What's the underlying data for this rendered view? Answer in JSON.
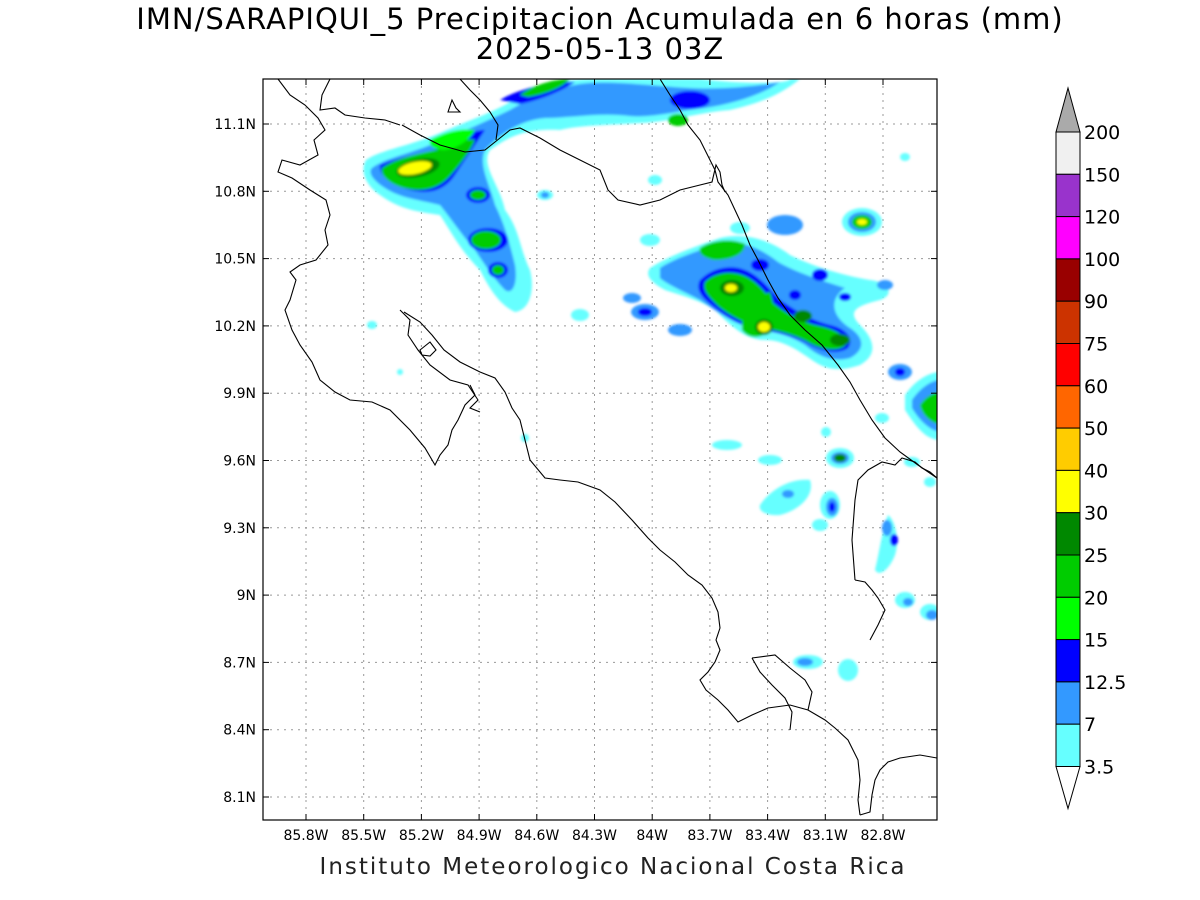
{
  "title_line1": "IMN/SARAPIQUI_5 Precipitacion Acumulada en 6 horas (mm)",
  "title_line2": "2025-05-13 03Z",
  "footer": "Instituto Meteorologico Nacional Costa Rica",
  "lat_ticks": [
    "11.1N",
    "10.8N",
    "10.5N",
    "10.2N",
    "9.9N",
    "9.6N",
    "9.3N",
    "9N",
    "8.7N",
    "8.4N",
    "8.1N"
  ],
  "lon_ticks": [
    "85.8W",
    "85.5W",
    "85.2W",
    "84.9W",
    "84.6W",
    "84.3W",
    "84W",
    "83.7W",
    "83.4W",
    "83.1W",
    "82.8W"
  ],
  "colorbar": {
    "labels": [
      "200",
      "150",
      "120",
      "100",
      "90",
      "75",
      "60",
      "50",
      "40",
      "30",
      "25",
      "20",
      "15",
      "12.5",
      "7",
      "3.5"
    ],
    "colors": {
      "c3_5": "#66ffff",
      "c7": "#3399ff",
      "c12_5": "#0000ff",
      "c15": "#00ff00",
      "c20": "#00cc00",
      "c25": "#008800",
      "c30": "#ffff00",
      "c40": "#ffcc00",
      "c50": "#ff6600",
      "c60": "#ff0000",
      "c75": "#cc3300",
      "c90": "#990000",
      "c100": "#ff00ff",
      "c120": "#9933cc",
      "c150": "#f0f0f0",
      "c200": "#aaaaaa"
    }
  }
}
